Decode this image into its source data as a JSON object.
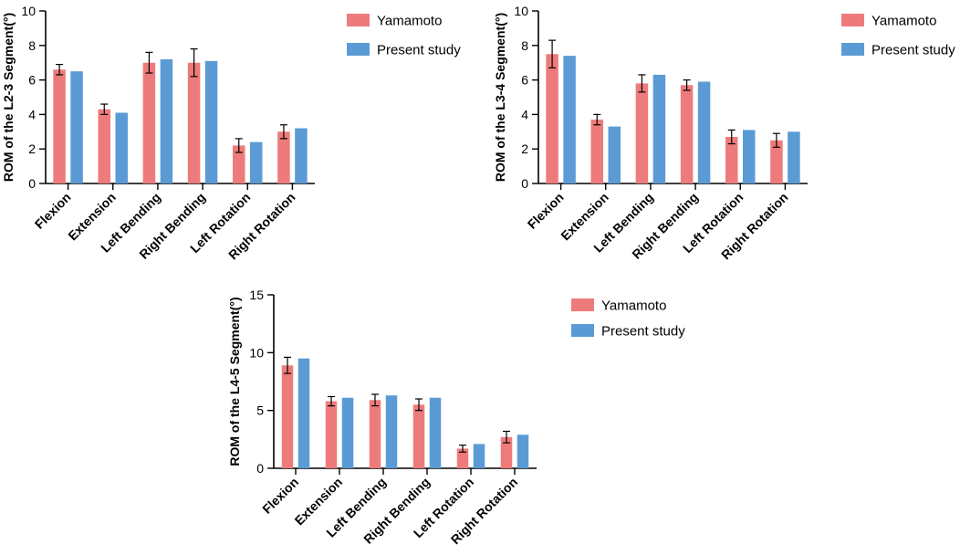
{
  "colors": {
    "yamamoto": "#ee7b7b",
    "present": "#5b9bd5",
    "axis": "#000000"
  },
  "chart_data": [
    {
      "type": "bar",
      "ylabel": "ROM of the L2-3 Segment(°)",
      "ylim": [
        0,
        10
      ],
      "yticks": [
        0,
        2,
        4,
        6,
        8,
        10
      ],
      "categories": [
        "Flexion",
        "Extension",
        "Left Bending",
        "Right Bending",
        "Left Rotation",
        "Right Rotation"
      ],
      "legend_position": "top-right",
      "series": [
        {
          "name": "Yamamoto",
          "color": "#ee7b7b",
          "values": [
            6.6,
            4.3,
            7.0,
            7.0,
            2.2,
            3.0
          ],
          "errors": [
            0.3,
            0.3,
            0.6,
            0.8,
            0.4,
            0.4
          ]
        },
        {
          "name": "Present study",
          "color": "#5b9bd5",
          "values": [
            6.5,
            4.1,
            7.2,
            7.1,
            2.4,
            3.2
          ]
        }
      ]
    },
    {
      "type": "bar",
      "ylabel": "ROM of the L3-4 Segment(°)",
      "ylim": [
        0,
        10
      ],
      "yticks": [
        0,
        2,
        4,
        6,
        8,
        10
      ],
      "categories": [
        "Flexion",
        "Extension",
        "Left Bending",
        "Right Bending",
        "Left Rotation",
        "Right Rotation"
      ],
      "legend_position": "top-right",
      "series": [
        {
          "name": "Yamamoto",
          "color": "#ee7b7b",
          "values": [
            7.5,
            3.7,
            5.8,
            5.7,
            2.7,
            2.5
          ],
          "errors": [
            0.8,
            0.3,
            0.5,
            0.3,
            0.4,
            0.4
          ]
        },
        {
          "name": "Present study",
          "color": "#5b9bd5",
          "values": [
            7.4,
            3.3,
            6.3,
            5.9,
            3.1,
            3.0
          ]
        }
      ]
    },
    {
      "type": "bar",
      "ylabel": "ROM of the L4-5 Segment(°)",
      "ylim": [
        0,
        15
      ],
      "yticks": [
        0,
        5,
        10,
        15
      ],
      "categories": [
        "Flexion",
        "Extension",
        "Left Bending",
        "Right Bending",
        "Left Rotation",
        "Right Rotation"
      ],
      "legend_position": "top-right",
      "series": [
        {
          "name": "Yamamoto",
          "color": "#ee7b7b",
          "values": [
            8.9,
            5.8,
            5.9,
            5.5,
            1.7,
            2.7
          ],
          "errors": [
            0.7,
            0.4,
            0.5,
            0.5,
            0.3,
            0.5
          ]
        },
        {
          "name": "Present study",
          "color": "#5b9bd5",
          "values": [
            9.5,
            6.1,
            6.3,
            6.1,
            2.1,
            2.9
          ]
        }
      ]
    }
  ]
}
